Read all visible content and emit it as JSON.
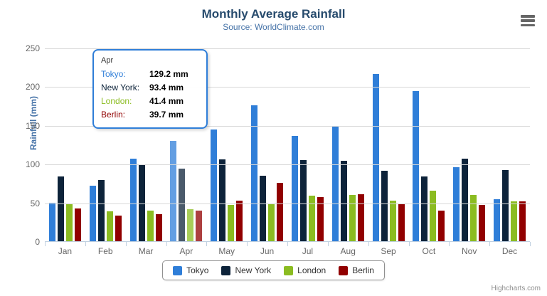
{
  "chart": {
    "title": "Monthly Average Rainfall",
    "subtitle": "Source: WorldClimate.com",
    "yaxis_title": "Rainfall (mm)",
    "credits": "Highcharts.com"
  },
  "chart_data": {
    "type": "bar",
    "title": "Monthly Average Rainfall",
    "subtitle": "Source: WorldClimate.com",
    "xlabel": "",
    "ylabel": "Rainfall (mm)",
    "ylim": [
      0,
      250
    ],
    "ytick_interval": 50,
    "yticks": [
      0,
      50,
      100,
      150,
      200,
      250
    ],
    "grid": true,
    "legend_position": "bottom",
    "hovered_category": "Apr",
    "categories": [
      "Jan",
      "Feb",
      "Mar",
      "Apr",
      "May",
      "Jun",
      "Jul",
      "Aug",
      "Sep",
      "Oct",
      "Nov",
      "Dec"
    ],
    "series": [
      {
        "name": "Tokyo",
        "color": "#2f7ed8",
        "values": [
          49.9,
          71.5,
          106.4,
          129.2,
          144.0,
          176.0,
          135.6,
          148.5,
          216.4,
          194.1,
          95.6,
          54.4
        ]
      },
      {
        "name": "New York",
        "color": "#0d233a",
        "values": [
          83.6,
          78.8,
          98.5,
          93.4,
          106.0,
          84.5,
          105.0,
          104.3,
          91.2,
          83.5,
          106.6,
          92.3
        ]
      },
      {
        "name": "London",
        "color": "#8bbc21",
        "values": [
          48.9,
          38.8,
          39.3,
          41.4,
          47.0,
          48.3,
          59.0,
          59.6,
          52.4,
          65.2,
          59.3,
          51.2
        ]
      },
      {
        "name": "Berlin",
        "color": "#910000",
        "values": [
          42.4,
          33.2,
          34.5,
          39.7,
          52.6,
          75.5,
          57.4,
          60.4,
          47.6,
          39.1,
          46.8,
          51.1
        ]
      }
    ]
  },
  "tooltip": {
    "header": "Apr",
    "rows": [
      {
        "label": "Tokyo:",
        "value": "129.2 mm",
        "color": "#2f7ed8"
      },
      {
        "label": "New York:",
        "value": "93.4 mm",
        "color": "#0d233a"
      },
      {
        "label": "London:",
        "value": "41.4 mm",
        "color": "#8bbc21"
      },
      {
        "label": "Berlin:",
        "value": "39.7 mm",
        "color": "#910000"
      }
    ]
  }
}
